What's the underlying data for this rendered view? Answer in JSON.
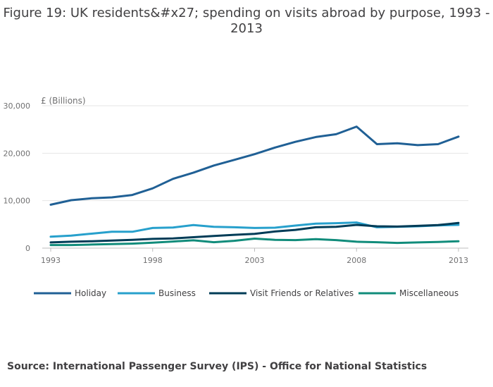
{
  "title_line1": "Figure 19: UK residents&#x27; spending on visits abroad by purpose, 1993 -",
  "title_line2": "2013",
  "source": "Source: International Passenger Survey (IPS) - Office for National Statistics",
  "chart_data": {
    "type": "line",
    "title": "Figure 19: UK residents&#x27; spending on visits abroad by purpose, 1993 - 2013",
    "ylabel": "£ (Billions)",
    "xlabel": "",
    "ylim": [
      0,
      30000
    ],
    "xlim": [
      1993,
      2013
    ],
    "yticks": [
      0,
      10000,
      20000,
      30000
    ],
    "ytick_labels": [
      "0",
      "10,000",
      "20,000",
      "30,000"
    ],
    "xticks": [
      1993,
      1998,
      2003,
      2008,
      2013
    ],
    "xtick_labels": [
      "1993",
      "1998",
      "2003",
      "2008",
      "2013"
    ],
    "grid": true,
    "legend_position": "bottom",
    "x": [
      1993,
      1994,
      1995,
      1996,
      1997,
      1998,
      1999,
      2000,
      2001,
      2002,
      2003,
      2004,
      2005,
      2006,
      2007,
      2008,
      2009,
      2010,
      2011,
      2012,
      2013
    ],
    "series": [
      {
        "name": "Holiday",
        "color": "#206095",
        "values": [
          9150,
          10100,
          10500,
          10700,
          11200,
          12600,
          14600,
          15900,
          17400,
          18600,
          19800,
          21200,
          22400,
          23400,
          24000,
          25600,
          21900,
          22100,
          21700,
          21900,
          23500
        ]
      },
      {
        "name": "Business",
        "color": "#27a0cc",
        "values": [
          2400,
          2650,
          3050,
          3450,
          3450,
          4250,
          4350,
          4850,
          4500,
          4400,
          4250,
          4300,
          4750,
          5150,
          5250,
          5400,
          4400,
          4500,
          4600,
          4800,
          4900
        ]
      },
      {
        "name": "Visit Friends or Relatives",
        "color": "#003c57",
        "values": [
          1200,
          1350,
          1450,
          1600,
          1750,
          1950,
          2050,
          2300,
          2550,
          2800,
          3000,
          3500,
          3850,
          4400,
          4500,
          4900,
          4600,
          4550,
          4700,
          4850,
          5300
        ]
      },
      {
        "name": "Miscellaneous",
        "color": "#118c7b",
        "values": [
          650,
          650,
          750,
          850,
          950,
          1150,
          1400,
          1650,
          1250,
          1550,
          2000,
          1750,
          1700,
          1900,
          1700,
          1350,
          1250,
          1100,
          1200,
          1300,
          1450
        ]
      }
    ]
  }
}
